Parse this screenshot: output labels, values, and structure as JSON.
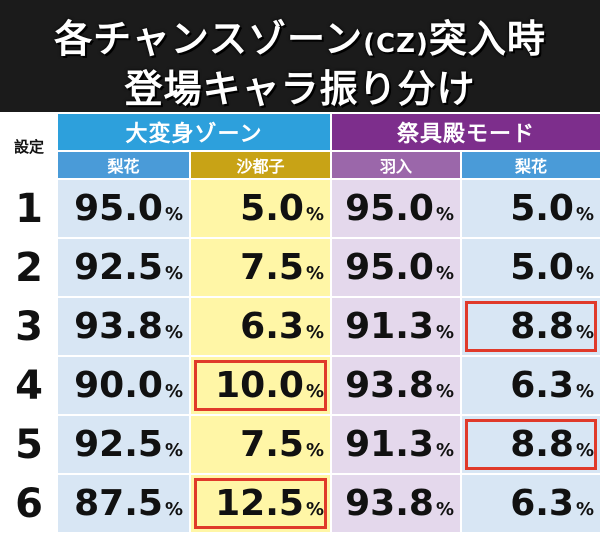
{
  "title": {
    "line1_pre": "各チャンスゾーン",
    "line1_small": "(CZ)",
    "line1_post": "突入時",
    "line2": "登場キャラ振り分け"
  },
  "table": {
    "setting_header": "設定",
    "groups": [
      {
        "label": "大変身ゾーン",
        "color": "#2da0dc"
      },
      {
        "label": "祭具殿モード",
        "color": "#7d2e8c"
      }
    ],
    "subheaders": [
      "梨花",
      "沙都子",
      "羽入",
      "梨花"
    ],
    "percent_sign": "%",
    "highlight_color": "#e03a2a",
    "rows": [
      {
        "setting": "1",
        "values": [
          "95.0",
          "5.0",
          "95.0",
          "5.0"
        ],
        "highlight": [
          false,
          false,
          false,
          false
        ]
      },
      {
        "setting": "2",
        "values": [
          "92.5",
          "7.5",
          "95.0",
          "5.0"
        ],
        "highlight": [
          false,
          false,
          false,
          false
        ]
      },
      {
        "setting": "3",
        "values": [
          "93.8",
          "6.3",
          "91.3",
          "8.8"
        ],
        "highlight": [
          false,
          false,
          false,
          true
        ]
      },
      {
        "setting": "4",
        "values": [
          "90.0",
          "10.0",
          "93.8",
          "6.3"
        ],
        "highlight": [
          false,
          true,
          false,
          false
        ]
      },
      {
        "setting": "5",
        "values": [
          "92.5",
          "7.5",
          "91.3",
          "8.8"
        ],
        "highlight": [
          false,
          false,
          false,
          true
        ]
      },
      {
        "setting": "6",
        "values": [
          "87.5",
          "12.5",
          "93.8",
          "6.3"
        ],
        "highlight": [
          false,
          true,
          false,
          false
        ]
      }
    ]
  }
}
